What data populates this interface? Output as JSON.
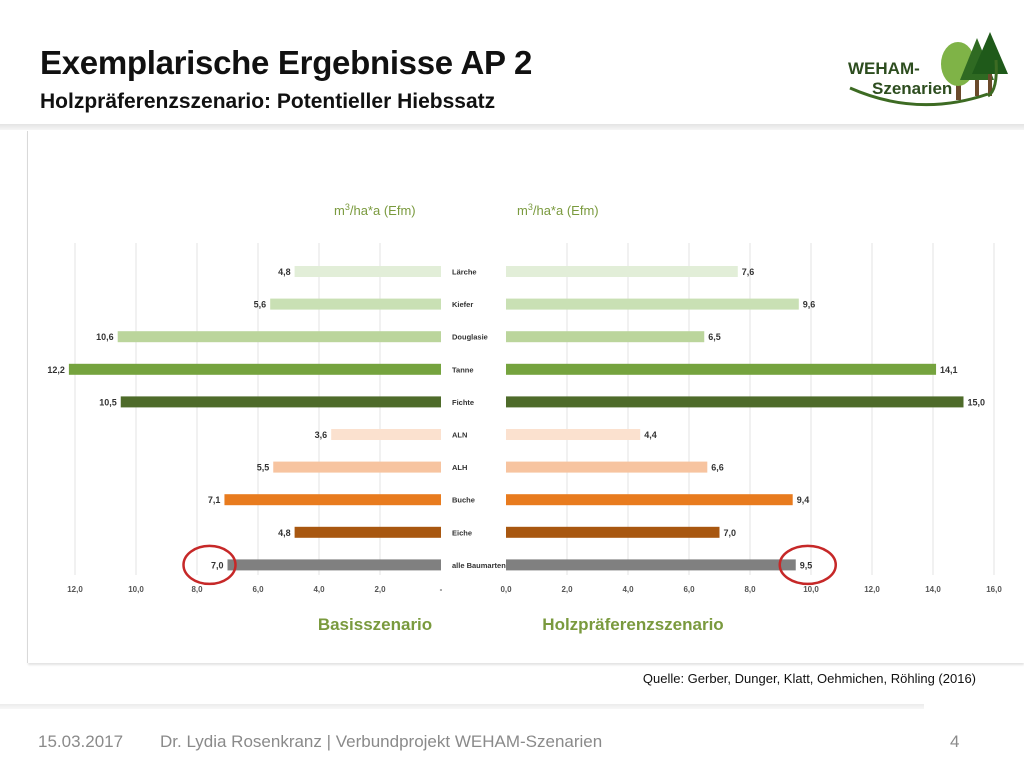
{
  "header": {
    "title": "Exemplarische Ergebnisse AP 2",
    "subtitle": "Holzpräferenzszenario: Potentieller Hiebssatz"
  },
  "logo": {
    "line1": "WEHAM-",
    "line2": "Szenarien",
    "icon": "trees-logo-icon"
  },
  "chart_data": {
    "type": "bar",
    "orientation": "horizontal-butterfly",
    "categories": [
      "Lärche",
      "Kiefer",
      "Douglasie",
      "Tanne",
      "Fichte",
      "ALN",
      "ALH",
      "Buche",
      "Eiche",
      "alle Baumarten"
    ],
    "unit_base": "m",
    "unit_exp": "3",
    "unit_rest": "/ha*a (Efm)",
    "series": [
      {
        "name": "Basisszenario",
        "values": [
          4.8,
          5.6,
          10.6,
          12.2,
          10.5,
          3.6,
          5.5,
          7.1,
          4.8,
          7.0
        ],
        "labels": [
          "4,8",
          "5,6",
          "10,6",
          "12,2",
          "10,5",
          "3,6",
          "5,5",
          "7,1",
          "4,8",
          "7,0"
        ],
        "xlim": [
          0,
          12
        ],
        "ticks": [
          "12,0",
          "10,0",
          "8,0",
          "6,0",
          "4,0",
          "2,0",
          "-"
        ]
      },
      {
        "name": "Holzpräferenzszenario",
        "values": [
          7.6,
          9.6,
          6.5,
          14.1,
          15.0,
          4.4,
          6.6,
          9.4,
          7.0,
          9.5
        ],
        "labels": [
          "7,6",
          "9,6",
          "6,5",
          "14,1",
          "15,0",
          "4,4",
          "6,6",
          "9,4",
          "7,0",
          "9,5"
        ],
        "xlim": [
          0,
          16
        ],
        "ticks": [
          "0,0",
          "2,0",
          "4,0",
          "6,0",
          "8,0",
          "10,0",
          "12,0",
          "14,0",
          "16,0"
        ]
      }
    ],
    "colors": [
      "#e2eed8",
      "#c9e0b4",
      "#bbd59c",
      "#75a33e",
      "#4e6b2a",
      "#fbe1cf",
      "#f7c4a0",
      "#e87b1e",
      "#a85710",
      "#808080"
    ],
    "highlight_color": "#c62828",
    "highlighted_category": "alle Baumarten",
    "label_color": "#7a9a3e",
    "grid": true
  },
  "source": "Quelle: Gerber, Dunger, Klatt, Oehmichen, Röhling (2016)",
  "footer": {
    "date": "15.03.2017",
    "author": "Dr. Lydia Rosenkranz | Verbundprojekt WEHAM-Szenarien",
    "page": "4"
  }
}
